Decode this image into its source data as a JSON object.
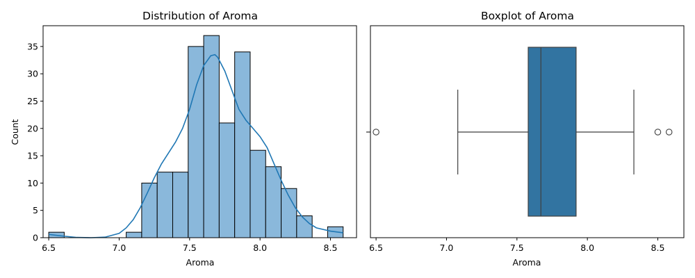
{
  "chart_data": [
    {
      "type": "bar",
      "title": "Distribution of Aroma",
      "xlabel": "Aroma",
      "ylabel": "Count",
      "xlim": [
        6.46,
        8.685
      ],
      "ylim": [
        0,
        38.8
      ],
      "xticks": [
        "6.5",
        "7.0",
        "7.5",
        "8.0",
        "8.5"
      ],
      "xtick_values": [
        6.5,
        7.0,
        7.5,
        8.0,
        8.5
      ],
      "yticks": [
        "0",
        "5",
        "10",
        "15",
        "20",
        "25",
        "30",
        "35"
      ],
      "ytick_values": [
        0,
        5,
        10,
        15,
        20,
        25,
        30,
        35
      ],
      "bin_edges": [
        6.5,
        6.61,
        6.72,
        6.83,
        6.94,
        7.05,
        7.16,
        7.27,
        7.38,
        7.49,
        7.6,
        7.71,
        7.82,
        7.93,
        8.04,
        8.15,
        8.26,
        8.37,
        8.48,
        8.59
      ],
      "counts": [
        1,
        0,
        0,
        0,
        0,
        1,
        10,
        12,
        12,
        35,
        37,
        21,
        34,
        16,
        13,
        9,
        4,
        0,
        2
      ],
      "bar_color": "#8ab8db",
      "edge_color": "#000000",
      "kde": {
        "color": "#1f77b4",
        "x": [
          6.5,
          6.6,
          6.7,
          6.8,
          6.9,
          7.0,
          7.05,
          7.1,
          7.15,
          7.2,
          7.25,
          7.3,
          7.35,
          7.4,
          7.45,
          7.5,
          7.55,
          7.6,
          7.65,
          7.68,
          7.7,
          7.75,
          7.8,
          7.85,
          7.9,
          7.95,
          8.0,
          8.05,
          8.1,
          8.15,
          8.2,
          8.25,
          8.3,
          8.35,
          8.4,
          8.5,
          8.59
        ],
        "y": [
          0.6,
          0.3,
          0.05,
          0.0,
          0.1,
          0.8,
          1.8,
          3.3,
          5.5,
          8.2,
          11.0,
          13.5,
          15.5,
          17.5,
          20.0,
          23.5,
          28.0,
          31.5,
          33.3,
          33.5,
          33.0,
          30.5,
          27.0,
          23.5,
          21.5,
          20.0,
          18.5,
          16.5,
          13.5,
          10.5,
          7.8,
          5.5,
          3.8,
          2.6,
          1.8,
          1.2,
          0.9
        ]
      }
    },
    {
      "type": "box",
      "title": "Boxplot of Aroma",
      "xlabel": "Aroma",
      "xlim": [
        6.46,
        8.685
      ],
      "xticks": [
        "6.5",
        "7.0",
        "7.5",
        "8.0",
        "8.5"
      ],
      "xtick_values": [
        6.5,
        7.0,
        7.5,
        8.0,
        8.5
      ],
      "box": {
        "q1": 7.58,
        "median": 7.67,
        "q3": 7.92,
        "whisker_low": 7.08,
        "whisker_high": 8.33
      },
      "outliers": [
        6.5,
        8.5,
        8.58
      ],
      "box_color": "#3274a1",
      "line_color": "#3f3f3f"
    }
  ]
}
